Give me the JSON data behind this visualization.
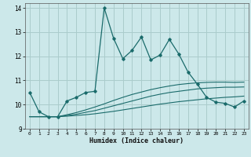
{
  "xlabel": "Humidex (Indice chaleur)",
  "xlim": [
    -0.5,
    23.5
  ],
  "ylim": [
    9,
    14.2
  ],
  "yticks": [
    9,
    10,
    11,
    12,
    13,
    14
  ],
  "xticks": [
    0,
    1,
    2,
    3,
    4,
    5,
    6,
    7,
    8,
    9,
    10,
    11,
    12,
    13,
    14,
    15,
    16,
    17,
    18,
    19,
    20,
    21,
    22,
    23
  ],
  "bg_color": "#cce8ea",
  "line_color": "#1a6b6b",
  "grid_color": "#aacccc",
  "main_line_x": [
    0,
    1,
    2,
    3,
    4,
    5,
    6,
    7,
    8,
    9,
    10,
    11,
    12,
    13,
    14,
    15,
    16,
    17,
    18,
    19,
    20,
    21,
    22,
    23
  ],
  "main_line_y": [
    10.5,
    9.7,
    9.5,
    9.5,
    10.15,
    10.3,
    10.5,
    10.55,
    14.0,
    12.75,
    11.9,
    12.25,
    12.8,
    11.85,
    12.05,
    12.7,
    12.1,
    11.35,
    10.85,
    10.3,
    10.1,
    10.05,
    9.9,
    10.15
  ],
  "band_lines": [
    [
      9.5,
      9.5,
      9.5,
      9.5,
      9.52,
      9.55,
      9.58,
      9.62,
      9.67,
      9.72,
      9.78,
      9.84,
      9.9,
      9.96,
      10.02,
      10.07,
      10.12,
      10.16,
      10.2,
      10.24,
      10.27,
      10.3,
      10.32,
      10.35
    ],
    [
      9.5,
      9.5,
      9.5,
      9.5,
      9.55,
      9.6,
      9.68,
      9.75,
      9.85,
      9.95,
      10.05,
      10.15,
      10.25,
      10.35,
      10.43,
      10.5,
      10.55,
      10.6,
      10.65,
      10.68,
      10.7,
      10.72,
      10.72,
      10.73
    ],
    [
      9.5,
      9.5,
      9.5,
      9.5,
      9.58,
      9.67,
      9.78,
      9.9,
      10.03,
      10.17,
      10.3,
      10.42,
      10.52,
      10.62,
      10.7,
      10.77,
      10.83,
      10.87,
      10.9,
      10.92,
      10.93,
      10.93,
      10.92,
      10.93
    ]
  ]
}
